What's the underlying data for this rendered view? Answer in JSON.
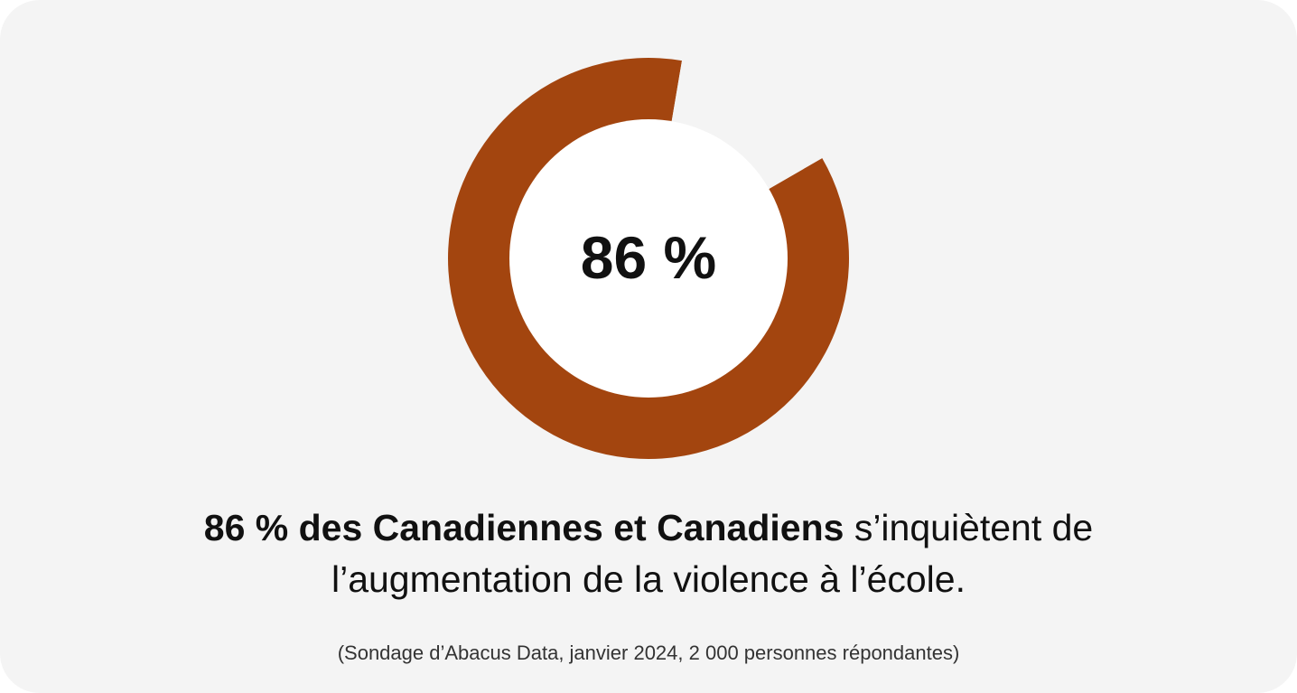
{
  "chart_data": {
    "type": "pie",
    "variant": "donut",
    "values": [
      86,
      14
    ],
    "center_label": "86 %",
    "colors": [
      "#a3450f",
      "#f4f4f4"
    ]
  },
  "headline": {
    "bold": "86 % des Canadiennes et Canadiens",
    "rest_line1": " s’inquiètent de",
    "rest_line2": "l’augmentation de la violence à l’école."
  },
  "source": "(Sondage d’Abacus Data, janvier 2024, 2 000 personnes répondantes)",
  "colors": {
    "background": "#f4f4f4",
    "accent": "#a3450f",
    "inner": "#ffffff",
    "text": "#111111"
  }
}
